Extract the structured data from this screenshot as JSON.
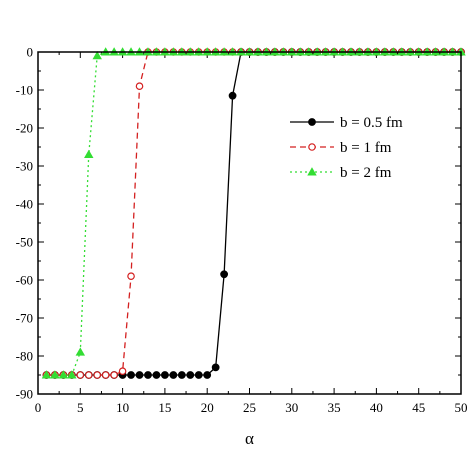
{
  "chart_data": {
    "type": "line",
    "title": "",
    "xlabel": "α",
    "ylabel": "",
    "xlim": [
      0,
      50
    ],
    "ylim": [
      -90,
      0
    ],
    "xticks": [
      0,
      5,
      10,
      15,
      20,
      25,
      30,
      35,
      40,
      45,
      50
    ],
    "yticks": [
      0,
      -10,
      -20,
      -30,
      -40,
      -50,
      -60,
      -70,
      -80,
      -90
    ],
    "grid": false,
    "legend_position": "upper-right",
    "series": [
      {
        "name": "b = 0.5 fm",
        "color": "#000000",
        "line_style": "solid",
        "marker": "filled-circle",
        "x": [
          1,
          2,
          3,
          4,
          5,
          6,
          7,
          8,
          9,
          10,
          11,
          12,
          13,
          14,
          15,
          16,
          17,
          18,
          19,
          20,
          21,
          22,
          23,
          24,
          25,
          26,
          27,
          28,
          29,
          30,
          31,
          32,
          33,
          34,
          35,
          36,
          37,
          38,
          39,
          40,
          41,
          42,
          43,
          44,
          45,
          46,
          47,
          48,
          49,
          50
        ],
        "y": [
          -85,
          -85,
          -85,
          -85,
          -85,
          -85,
          -85,
          -85,
          -85,
          -85,
          -85,
          -85,
          -85,
          -85,
          -85,
          -85,
          -85,
          -85,
          -85,
          -85,
          -83,
          -58.5,
          -11.5,
          0,
          0,
          0,
          0,
          0,
          0,
          0,
          0,
          0,
          0,
          0,
          0,
          0,
          0,
          0,
          0,
          0,
          0,
          0,
          0,
          0,
          0,
          0,
          0,
          0,
          0,
          0
        ]
      },
      {
        "name": "b = 1 fm",
        "color": "#d42020",
        "line_style": "dashed",
        "marker": "open-circle",
        "x": [
          1,
          2,
          3,
          4,
          5,
          6,
          7,
          8,
          9,
          10,
          11,
          12,
          13,
          14,
          15,
          16,
          17,
          18,
          19,
          20,
          21,
          22,
          23,
          24,
          25,
          26,
          27,
          28,
          29,
          30,
          31,
          32,
          33,
          34,
          35,
          36,
          37,
          38,
          39,
          40,
          41,
          42,
          43,
          44,
          45,
          46,
          47,
          48,
          49,
          50
        ],
        "y": [
          -85,
          -85,
          -85,
          -85,
          -85,
          -85,
          -85,
          -85,
          -85,
          -84,
          -59,
          -9,
          0,
          0,
          0,
          0,
          0,
          0,
          0,
          0,
          0,
          0,
          0,
          0,
          0,
          0,
          0,
          0,
          0,
          0,
          0,
          0,
          0,
          0,
          0,
          0,
          0,
          0,
          0,
          0,
          0,
          0,
          0,
          0,
          0,
          0,
          0,
          0,
          0,
          0
        ]
      },
      {
        "name": "b = 2 fm",
        "color": "#33dd33",
        "line_style": "dotted",
        "marker": "filled-triangle",
        "x": [
          1,
          2,
          3,
          4,
          5,
          6,
          7,
          8,
          9,
          10,
          11,
          12,
          13,
          14,
          15,
          16,
          17,
          18,
          19,
          20,
          21,
          22,
          23,
          24,
          25,
          26,
          27,
          28,
          29,
          30,
          31,
          32,
          33,
          34,
          35,
          36,
          37,
          38,
          39,
          40,
          41,
          42,
          43,
          44,
          45,
          46,
          47,
          48,
          49,
          50
        ],
        "y": [
          -85,
          -85,
          -85,
          -85,
          -79,
          -27,
          -1,
          0,
          0,
          0,
          0,
          0,
          0,
          0,
          0,
          0,
          0,
          0,
          0,
          0,
          0,
          0,
          0,
          0,
          0,
          0,
          0,
          0,
          0,
          0,
          0,
          0,
          0,
          0,
          0,
          0,
          0,
          0,
          0,
          0,
          0,
          0,
          0,
          0,
          0,
          0,
          0,
          0,
          0,
          0
        ]
      }
    ]
  }
}
